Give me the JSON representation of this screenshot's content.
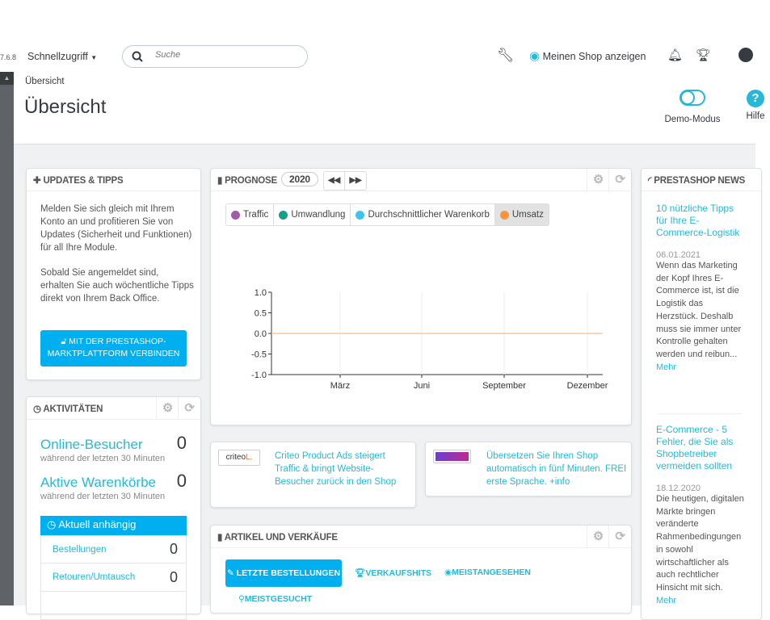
{
  "header": {
    "version": "7.6.8",
    "quick_access": "Schnellzugriff",
    "search_placeholder": "Suche",
    "view_shop": "Meinen Shop anzeigen"
  },
  "page": {
    "breadcrumb": "Übersicht",
    "title": "Übersicht",
    "demo_mode": "Demo-Modus",
    "help": "Hilfe"
  },
  "updates": {
    "title": "Updates & Tipps",
    "text1": "Melden Sie sich gleich mit Ihrem Konto an und profitieren Sie von Updates (Sicherheit und Funktionen) für all Ihre Module.",
    "text2": "Sobald Sie angemeldet sind, erhalten Sie auch wöchentliche Tipps direkt von Ihrem Back Office.",
    "button": "Mit der PrestaShop-Marktplattform verbinden"
  },
  "activity": {
    "title": "Aktivitäten",
    "online_label": "Online-Besucher",
    "online_value": "0",
    "online_sub": "während der letzten 30 Minuten",
    "carts_label": "Aktive Warenkörbe",
    "carts_value": "0",
    "carts_sub": "während der letzten 30 Minuten",
    "pending_title": "Aktuell anhängig",
    "pending": [
      {
        "label": "Bestellungen",
        "value": "0"
      },
      {
        "label": "Retouren/Umtausch",
        "value": "0"
      }
    ]
  },
  "forecast": {
    "title": "Prognose",
    "year": "2020",
    "legend": [
      {
        "label": "Traffic",
        "color": "#a05ca5"
      },
      {
        "label": "Umwandlung",
        "color": "#139f8c"
      },
      {
        "label": "Durchschnittlicher Warenkorb",
        "color": "#3fc4ee"
      },
      {
        "label": "Umsatz",
        "color": "#f9943d",
        "active": true
      }
    ]
  },
  "chart_data": {
    "type": "line",
    "x_tick_labels": [
      "März",
      "Juni",
      "September",
      "Dezember"
    ],
    "y_ticks": [
      "1.0",
      "0.5",
      "0.0",
      "-0.5",
      "-1.0"
    ],
    "ylim": [
      -1,
      1
    ],
    "grid": true,
    "series": [
      {
        "name": "Umsatz",
        "color": "#f3c9a4",
        "values": [
          0,
          0,
          0,
          0,
          0,
          0,
          0,
          0,
          0,
          0,
          0,
          0
        ]
      }
    ]
  },
  "ads": [
    {
      "logo": "criteo",
      "text": "Criteo Product Ads steigert Traffic & bringt Website-Besucher zurück in den Shop"
    },
    {
      "logo": "glotio",
      "text": "Übersetzen Sie Ihren Shop automatisch in fünf Minuten. FREI erste Sprache. +info"
    }
  ],
  "products": {
    "title": "Artikel und Verkäufe",
    "tabs": [
      "Letzte Bestellungen",
      "Verkaufshits",
      "Meistangesehen",
      "Meistgesucht"
    ]
  },
  "news": {
    "title": "PrestaShop News",
    "more": "Mehr",
    "items": [
      {
        "title": "10 nützliche Tipps für Ihre E-Commerce-Logistik",
        "date": "06.01.2021",
        "text": "Wenn das Marketing der Kopf Ihres E-Commerce ist, ist die Logistik das Herzstück. Deshalb muss sie immer unter Kontrolle gehalten werden und reibun..."
      },
      {
        "title": "E-Commerce - 5 Fehler, die Sie als Shopbetreiber vermeiden sollten",
        "date": "18.12.2020",
        "text": "Die heutigen, digitalen Märkte bringen veränderte Rahmenbedingungen in sowohl wirtschaftlicher als auch rechtlicher Hinsicht mit sich."
      }
    ]
  }
}
